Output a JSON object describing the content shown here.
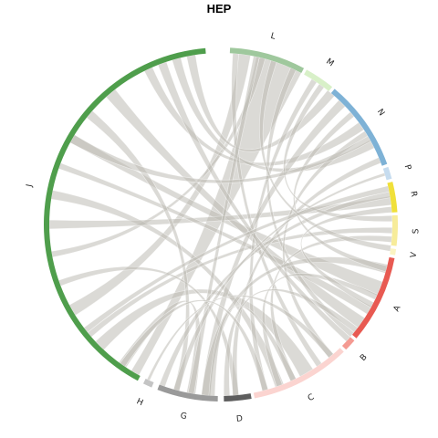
{
  "chart_data": {
    "type": "chord",
    "title": "HEP",
    "chord_color": "#bebcb4",
    "segments": [
      {
        "name": "L",
        "start": 3.0,
        "end": 28.0,
        "color": "#9fc89d"
      },
      {
        "name": "M",
        "start": 29.0,
        "end": 39.0,
        "color": "#d8f0c8"
      },
      {
        "name": "N",
        "start": 40.0,
        "end": 70.0,
        "color": "#7eb2d6"
      },
      {
        "name": "P",
        "start": 71.0,
        "end": 75.0,
        "color": "#c6dcef"
      },
      {
        "name": "R",
        "start": 76.0,
        "end": 86.0,
        "color": "#f0e03a"
      },
      {
        "name": "S",
        "start": 87.0,
        "end": 97.0,
        "color": "#f7ec9a"
      },
      {
        "name": "V",
        "start": 98.0,
        "end": 100.0,
        "color": "#fbf4c2"
      },
      {
        "name": "A",
        "start": 101.0,
        "end": 130.0,
        "color": "#e85a52"
      },
      {
        "name": "B",
        "start": 131.0,
        "end": 135.0,
        "color": "#f49a92"
      },
      {
        "name": "C",
        "start": 136.0,
        "end": 169.0,
        "color": "#fbd4d0"
      },
      {
        "name": "D",
        "start": 170.0,
        "end": 179.0,
        "color": "#5e5e5e"
      },
      {
        "name": "G",
        "start": 181.0,
        "end": 201.0,
        "color": "#9a9a9a"
      },
      {
        "name": "H",
        "start": 203.0,
        "end": 206.0,
        "color": "#c4c4c4"
      },
      {
        "name": "J",
        "start": 208.0,
        "end": 355.0,
        "color": "#4f9e4c"
      }
    ],
    "links": [
      [
        210,
        20,
        3,
        16
      ],
      [
        240,
        8,
        4,
        4
      ],
      [
        260,
        14,
        2,
        2
      ],
      [
        300,
        112,
        3,
        5
      ],
      [
        320,
        125,
        4,
        4
      ],
      [
        335,
        55,
        3,
        3
      ],
      [
        345,
        62,
        3,
        3
      ],
      [
        225,
        150,
        4,
        5
      ],
      [
        280,
        160,
        3,
        3
      ],
      [
        230,
        92,
        2,
        2
      ],
      [
        270,
        82,
        3,
        3
      ],
      [
        290,
        120,
        2,
        3
      ],
      [
        250,
        175,
        2,
        2
      ],
      [
        215,
        190,
        3,
        3
      ],
      [
        310,
        195,
        3,
        2
      ],
      [
        350,
        40,
        3,
        3
      ],
      [
        5,
        145,
        2,
        2
      ],
      [
        12,
        190,
        2,
        2
      ],
      [
        25,
        130,
        2,
        2
      ],
      [
        33,
        165,
        2,
        2
      ],
      [
        45,
        185,
        3,
        3
      ],
      [
        58,
        140,
        2,
        2
      ],
      [
        68,
        175,
        2,
        2
      ],
      [
        80,
        200,
        2,
        2
      ],
      [
        95,
        155,
        2,
        2
      ],
      [
        105,
        185,
        3,
        3
      ],
      [
        115,
        160,
        2,
        2
      ],
      [
        73,
        195,
        1,
        2
      ],
      [
        128,
        178,
        2,
        2
      ],
      [
        50,
        105,
        2,
        2
      ],
      [
        18,
        98,
        2,
        2
      ],
      [
        36,
        88,
        2,
        2
      ],
      [
        85,
        118,
        2,
        2
      ],
      [
        140,
        205,
        2,
        1
      ],
      [
        155,
        183,
        2,
        2
      ],
      [
        165,
        215,
        2,
        2
      ],
      [
        132,
        340,
        2,
        3
      ],
      [
        78,
        232,
        2,
        2
      ],
      [
        60,
        300,
        2,
        3
      ]
    ]
  }
}
